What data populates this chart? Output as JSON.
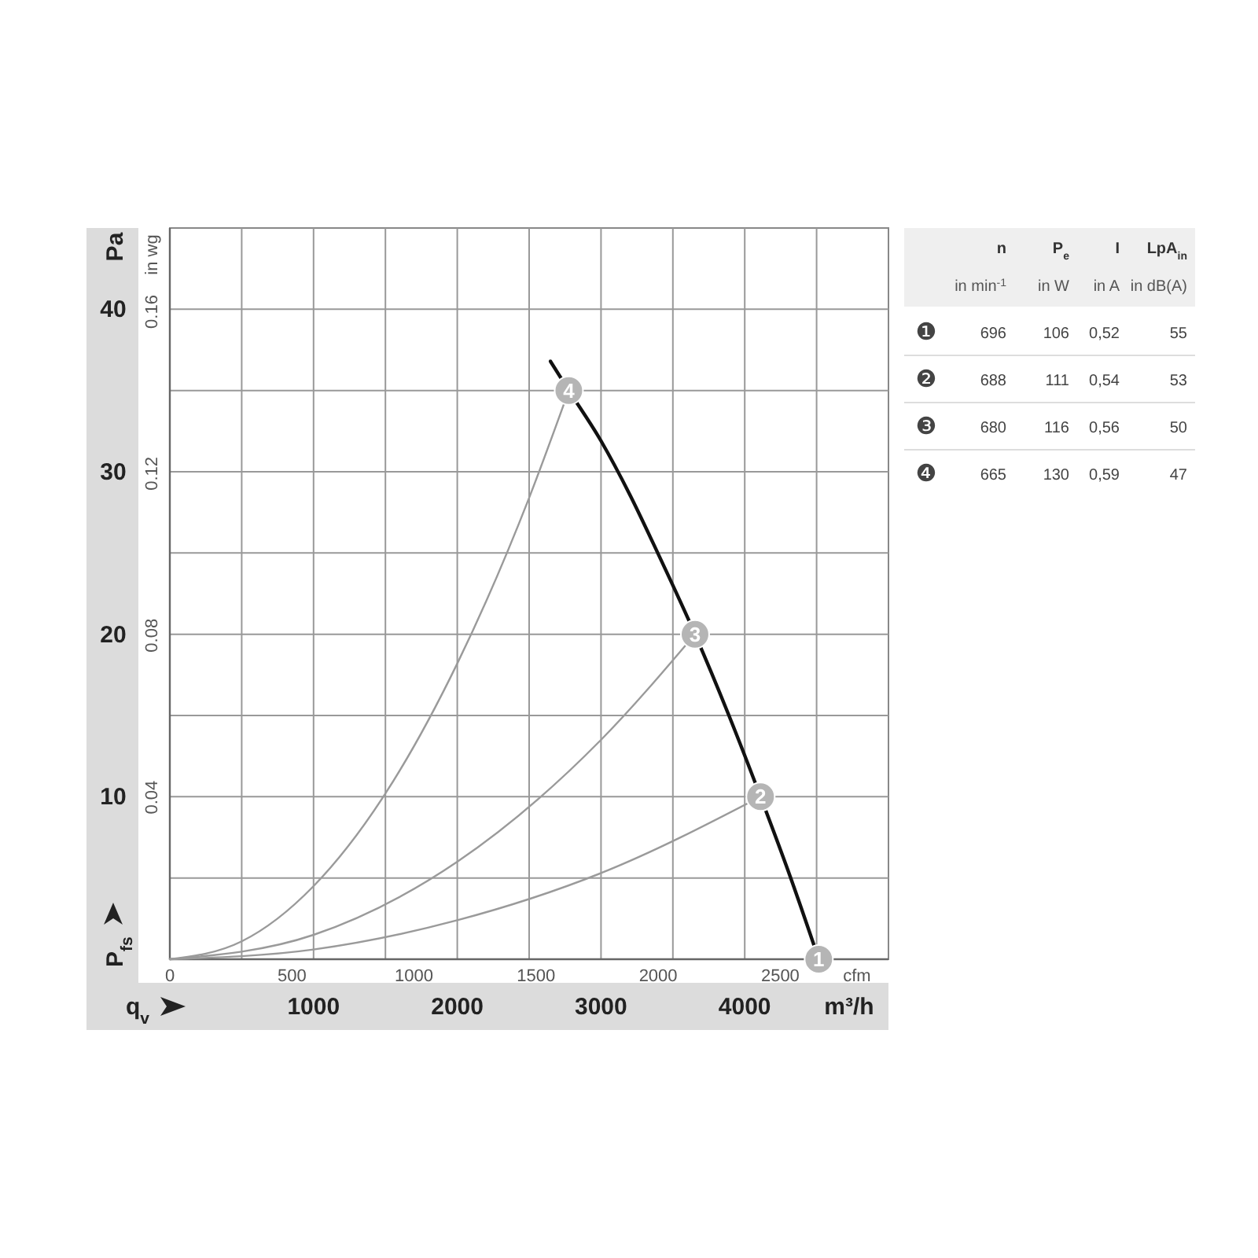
{
  "chart_data": [
    {
      "type": "line",
      "ylabel": "Pa",
      "y2label": "in wg",
      "xlabel": "m³/h",
      "x2label": "cfm",
      "xlim": [
        0,
        5000
      ],
      "xticks": [
        {
          "value": 500,
          "label": null
        },
        1000,
        {
          "value": 1500,
          "label": null
        },
        2000,
        {
          "value": 2500,
          "label": null
        },
        3000,
        {
          "value": 3500,
          "label": null
        },
        4000,
        {
          "value": 4500,
          "label": null
        }
      ],
      "ylim": [
        0,
        45
      ],
      "yticks": [
        {
          "value": 5,
          "label": null
        },
        10,
        {
          "value": 15,
          "label": null
        },
        20,
        {
          "value": 25,
          "label": null
        },
        30,
        {
          "value": 35,
          "label": null
        },
        40
      ],
      "y2lim": [
        0,
        0.1807
      ],
      "y2ticks": [
        0.04,
        0.08,
        0.12,
        0.16
      ],
      "x2lim": [
        0,
        2943
      ],
      "x2ticks": [
        0,
        500,
        1000,
        1500,
        2000,
        2500
      ],
      "grid": true,
      "marker": "none",
      "line_style": "solid",
      "series": [
        {
          "color": "#111111",
          "x": [
            2648,
            2776,
            3000,
            3200,
            3400,
            3654,
            3890,
            4110,
            4320,
            4515
          ],
          "values": [
            36.8,
            35,
            31.9,
            28.6,
            24.9,
            20,
            15,
            10,
            5,
            0
          ]
        },
        {
          "color": "#9a9a9a",
          "x": [
            0,
            500,
            1000,
            1500,
            2000,
            2500,
            2776
          ],
          "values": [
            0,
            1.1,
            4.5,
            10.2,
            18.2,
            28.4,
            35
          ]
        },
        {
          "color": "#9a9a9a",
          "x": [
            0,
            1000,
            2000,
            3000,
            3654
          ],
          "values": [
            0,
            1.5,
            6,
            13.5,
            20
          ]
        },
        {
          "color": "#9a9a9a",
          "x": [
            0,
            1000,
            2000,
            3000,
            4110
          ],
          "values": [
            0,
            0.6,
            2.4,
            5.3,
            10
          ]
        }
      ],
      "annotations": [
        {
          "text": "1",
          "x": 4515,
          "y": 0
        },
        {
          "text": "2",
          "x": 4110,
          "y": 10
        },
        {
          "text": "3",
          "x": 3654,
          "y": 20
        },
        {
          "text": "4",
          "x": 2776,
          "y": 35
        },
        "P$_{fs}$",
        "q$_{v}$"
      ]
    },
    {
      "type": "other",
      "categories": [
        "n",
        "P$_{e}$",
        "I",
        "LpA$_{in}$"
      ],
      "annotations": [
        "in min$^{-1}$",
        "in W",
        "in A",
        "in dB(A)"
      ],
      "cell_labels": [
        [
          "❶",
          "696",
          "106",
          "0,52",
          "55"
        ],
        [
          "❷",
          "688",
          "111",
          "0,54",
          "53"
        ],
        [
          "❸",
          "680",
          "116",
          "0,56",
          "50"
        ],
        [
          "❹",
          "665",
          "130",
          "0,59",
          "47"
        ]
      ]
    }
  ]
}
